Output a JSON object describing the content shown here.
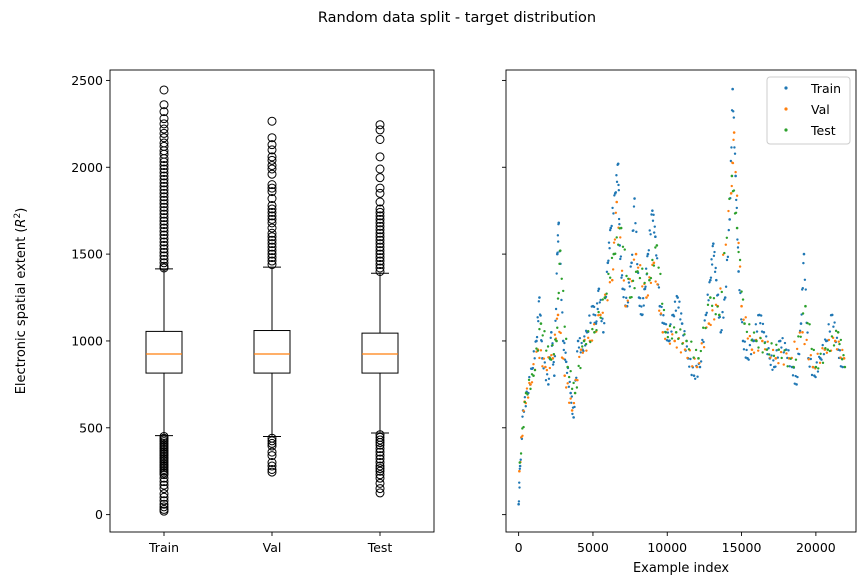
{
  "figure": {
    "suptitle": "Random data split - target distribution"
  },
  "chart_data": [
    {
      "type": "box",
      "ylabel_prefix": "Electronic spatial extent (",
      "ylabel_math": "R",
      "ylabel_sup": "2",
      "ylabel_suffix": ")",
      "ylim": [
        -100,
        2560
      ],
      "yticks": [
        0,
        500,
        1000,
        1500,
        2000,
        2500
      ],
      "categories": [
        "Train",
        "Val",
        "Test"
      ],
      "boxes": [
        {
          "name": "Train",
          "q1": 815,
          "median": 925,
          "q3": 1055,
          "whisker_low": 455,
          "whisker_high": 1415,
          "outliers": [
            2445,
            2360,
            2320,
            2280,
            2250,
            2220,
            2195,
            2170,
            2140,
            2120,
            2095,
            2075,
            2050,
            2030,
            2010,
            1990,
            1970,
            1950,
            1930,
            1910,
            1890,
            1870,
            1850,
            1830,
            1810,
            1790,
            1770,
            1750,
            1730,
            1710,
            1690,
            1670,
            1650,
            1630,
            1610,
            1590,
            1570,
            1550,
            1530,
            1510,
            1490,
            1470,
            1450,
            1430,
            1420,
            450,
            440,
            430,
            420,
            410,
            400,
            390,
            380,
            370,
            360,
            350,
            340,
            330,
            320,
            310,
            300,
            290,
            280,
            270,
            260,
            250,
            240,
            230,
            210,
            190,
            170,
            150,
            120,
            100,
            80,
            60,
            45,
            30,
            20
          ]
        },
        {
          "name": "Val",
          "q1": 815,
          "median": 925,
          "q3": 1060,
          "whisker_low": 450,
          "whisker_high": 1425,
          "outliers": [
            2265,
            2170,
            2130,
            2100,
            2060,
            2040,
            2010,
            1990,
            1960,
            1900,
            1880,
            1860,
            1820,
            1780,
            1760,
            1740,
            1720,
            1700,
            1680,
            1650,
            1620,
            1600,
            1580,
            1560,
            1540,
            1520,
            1500,
            1480,
            1460,
            1440,
            440,
            425,
            410,
            395,
            360,
            340,
            300,
            280,
            260,
            245
          ]
        },
        {
          "name": "Test",
          "q1": 815,
          "median": 925,
          "q3": 1045,
          "whisker_low": 470,
          "whisker_high": 1390,
          "outliers": [
            2245,
            2215,
            2160,
            2060,
            1990,
            1940,
            1880,
            1850,
            1800,
            1760,
            1740,
            1720,
            1700,
            1680,
            1660,
            1640,
            1620,
            1600,
            1580,
            1560,
            1540,
            1520,
            1500,
            1480,
            1460,
            1440,
            1420,
            1400,
            460,
            445,
            430,
            415,
            400,
            380,
            360,
            340,
            320,
            300,
            280,
            265,
            250,
            230,
            210,
            180,
            150,
            125
          ]
        }
      ]
    },
    {
      "type": "scatter",
      "xlabel": "Example index",
      "xlim": [
        -850,
        22700
      ],
      "ylim": [
        -100,
        2560
      ],
      "xticks": [
        0,
        5000,
        10000,
        15000,
        20000
      ],
      "legend_position": "top-right",
      "series": [
        {
          "name": "Train",
          "color": "#1f77b4",
          "points": [
            [
              0,
              60
            ],
            [
              100,
              280
            ],
            [
              300,
              600
            ],
            [
              600,
              700
            ],
            [
              900,
              840
            ],
            [
              1200,
              1000
            ],
            [
              1400,
              1250
            ],
            [
              1600,
              900
            ],
            [
              2000,
              750
            ],
            [
              2200,
              1050
            ],
            [
              2400,
              800
            ],
            [
              2600,
              1500
            ],
            [
              2700,
              1680
            ],
            [
              3000,
              1000
            ],
            [
              3200,
              880
            ],
            [
              3500,
              700
            ],
            [
              3700,
              560
            ],
            [
              4000,
              1000
            ],
            [
              4300,
              950
            ],
            [
              4600,
              1050
            ],
            [
              5000,
              1200
            ],
            [
              5200,
              1100
            ],
            [
              5400,
              1300
            ],
            [
              5700,
              1050
            ],
            [
              6000,
              1450
            ],
            [
              6200,
              1650
            ],
            [
              6500,
              1850
            ],
            [
              6700,
              2020
            ],
            [
              6800,
              1550
            ],
            [
              7000,
              1300
            ],
            [
              7300,
              1200
            ],
            [
              7600,
              1450
            ],
            [
              7800,
              1820
            ],
            [
              8100,
              1250
            ],
            [
              8300,
              1150
            ],
            [
              8500,
              1300
            ],
            [
              8700,
              1500
            ],
            [
              9000,
              1750
            ],
            [
              9200,
              1600
            ],
            [
              9500,
              1200
            ],
            [
              9800,
              1100
            ],
            [
              10100,
              1000
            ],
            [
              10400,
              1150
            ],
            [
              10700,
              1250
            ],
            [
              11000,
              1100
            ],
            [
              11400,
              900
            ],
            [
              11800,
              800
            ],
            [
              12200,
              850
            ],
            [
              12600,
              1150
            ],
            [
              12900,
              1350
            ],
            [
              13100,
              1560
            ],
            [
              13300,
              1350
            ],
            [
              13600,
              1050
            ],
            [
              13900,
              1250
            ],
            [
              14200,
              1700
            ],
            [
              14400,
              2450
            ],
            [
              14600,
              1950
            ],
            [
              14800,
              1400
            ],
            [
              15100,
              1000
            ],
            [
              15400,
              900
            ],
            [
              15800,
              1000
            ],
            [
              16200,
              1150
            ],
            [
              16500,
              1050
            ],
            [
              16900,
              900
            ],
            [
              17200,
              850
            ],
            [
              17600,
              1000
            ],
            [
              18000,
              950
            ],
            [
              18400,
              850
            ],
            [
              18700,
              750
            ],
            [
              19000,
              1100
            ],
            [
              19200,
              1500
            ],
            [
              19500,
              900
            ],
            [
              19900,
              800
            ],
            [
              20300,
              900
            ],
            [
              20700,
              1000
            ],
            [
              21100,
              1150
            ],
            [
              21500,
              950
            ],
            [
              21800,
              850
            ]
          ]
        },
        {
          "name": "Val",
          "color": "#ff7f0e",
          "points": [
            [
              50,
              250
            ],
            [
              400,
              650
            ],
            [
              800,
              750
            ],
            [
              1300,
              950
            ],
            [
              1800,
              850
            ],
            [
              2300,
              900
            ],
            [
              2650,
              1150
            ],
            [
              3100,
              800
            ],
            [
              3600,
              600
            ],
            [
              4200,
              950
            ],
            [
              4800,
              1000
            ],
            [
              5500,
              1150
            ],
            [
              6300,
              1350
            ],
            [
              6600,
              1800
            ],
            [
              7200,
              1200
            ],
            [
              7900,
              1500
            ],
            [
              8600,
              1250
            ],
            [
              9100,
              1450
            ],
            [
              9700,
              1050
            ],
            [
              10500,
              1000
            ],
            [
              11200,
              950
            ],
            [
              12000,
              850
            ],
            [
              12800,
              1100
            ],
            [
              13400,
              1200
            ],
            [
              14300,
              1850
            ],
            [
              14500,
              2200
            ],
            [
              15000,
              1200
            ],
            [
              15700,
              950
            ],
            [
              16400,
              1000
            ],
            [
              17300,
              900
            ],
            [
              18200,
              900
            ],
            [
              19100,
              1050
            ],
            [
              19800,
              850
            ],
            [
              20600,
              950
            ],
            [
              21300,
              1000
            ],
            [
              21900,
              900
            ]
          ]
        },
        {
          "name": "Test",
          "color": "#2ca02c",
          "points": [
            [
              80,
              300
            ],
            [
              500,
              700
            ],
            [
              1000,
              800
            ],
            [
              1500,
              1100
            ],
            [
              2100,
              900
            ],
            [
              2550,
              1000
            ],
            [
              2800,
              1520
            ],
            [
              3300,
              850
            ],
            [
              3800,
              700
            ],
            [
              4400,
              1000
            ],
            [
              5100,
              1050
            ],
            [
              5800,
              1250
            ],
            [
              6400,
              1500
            ],
            [
              6900,
              1650
            ],
            [
              7500,
              1250
            ],
            [
              8000,
              1400
            ],
            [
              8800,
              1350
            ],
            [
              9300,
              1550
            ],
            [
              9900,
              1050
            ],
            [
              10600,
              1050
            ],
            [
              11300,
              1000
            ],
            [
              12100,
              900
            ],
            [
              12900,
              1250
            ],
            [
              13500,
              1150
            ],
            [
              14350,
              1950
            ],
            [
              14700,
              1650
            ],
            [
              15200,
              1100
            ],
            [
              16000,
              1000
            ],
            [
              16700,
              950
            ],
            [
              17500,
              950
            ],
            [
              18500,
              850
            ],
            [
              19300,
              1200
            ],
            [
              20000,
              850
            ],
            [
              20800,
              950
            ],
            [
              21500,
              1050
            ],
            [
              21950,
              850
            ]
          ]
        }
      ]
    }
  ]
}
